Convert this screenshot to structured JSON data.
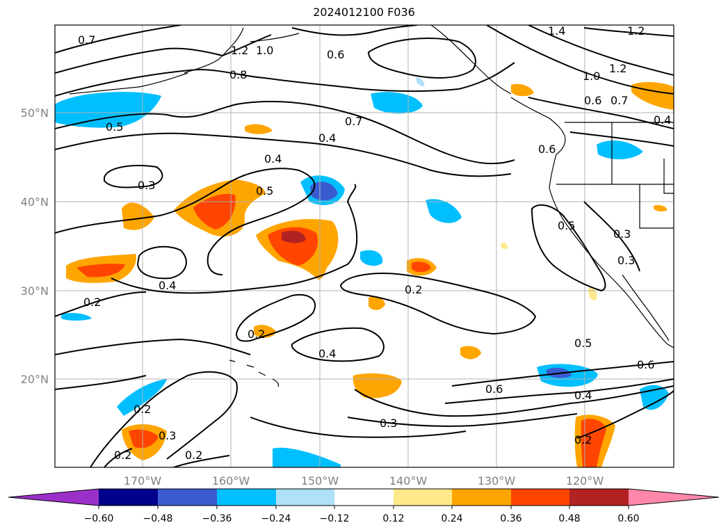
{
  "title": "2024012100 F036",
  "map": {
    "lat_labels": [
      "50°N",
      "40°N",
      "30°N",
      "20°N"
    ],
    "lon_labels": [
      "170°W",
      "160°W",
      "150°W",
      "140°W",
      "130°W",
      "120°W"
    ],
    "contour_labels": [
      "0.7",
      "1.2",
      "1.0",
      "0.6",
      "1.4",
      "1.2",
      "0.8",
      "1.0",
      "1.2",
      "0.6",
      "0.7",
      "0.5",
      "0.7",
      "0.4",
      "0.6",
      "0.4",
      "0.3",
      "0.5",
      "0.4",
      "0.5",
      "0.3",
      "0.3",
      "0.2",
      "0.2",
      "0.4",
      "0.2",
      "0.5",
      "0.6",
      "0.6",
      "0.4",
      "0.2",
      "0.3",
      "0.2",
      "0.2",
      "0.3",
      "0.2",
      "0.4"
    ]
  },
  "colorbar": {
    "tick_labels": [
      "−0.60",
      "−0.48",
      "−0.36",
      "−0.24",
      "−0.12",
      "0.12",
      "0.24",
      "0.36",
      "0.48",
      "0.60"
    ],
    "colors": [
      "#9b30c8",
      "#00008b",
      "#3a5bd0",
      "#00bfff",
      "#aee0f8",
      "#ffffff",
      "#ffe98a",
      "#ffa500",
      "#ff4500",
      "#b22222",
      "#ff88aa"
    ]
  }
}
